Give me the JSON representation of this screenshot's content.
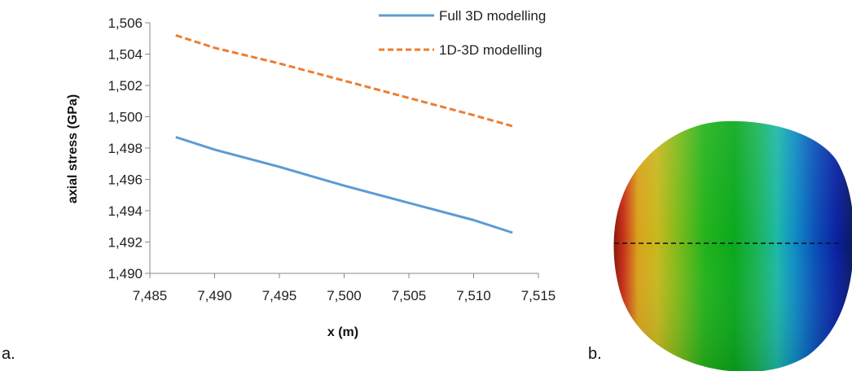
{
  "chart_data": {
    "type": "line",
    "xlabel": "x (m)",
    "ylabel": "axial stress (GPa)",
    "xlim": [
      7.485,
      7.515
    ],
    "ylim": [
      1.49,
      1.506
    ],
    "x_ticks": [
      "7,485",
      "7,490",
      "7,495",
      "7,500",
      "7,505",
      "7,510",
      "7,515"
    ],
    "y_ticks": [
      "1,490",
      "1,492",
      "1,494",
      "1,496",
      "1,498",
      "1,500",
      "1,502",
      "1,504",
      "1,506"
    ],
    "legend_position": "top-right",
    "grid": false,
    "series": [
      {
        "name": "Full 3D modelling",
        "color": "#5b9bd5",
        "style": "solid",
        "x": [
          7.487,
          7.49,
          7.495,
          7.5,
          7.505,
          7.51,
          7.513
        ],
        "y": [
          1.4987,
          1.4979,
          1.4968,
          1.4956,
          1.4945,
          1.4934,
          1.4926
        ]
      },
      {
        "name": "1D-3D modelling",
        "color": "#ed7d31",
        "style": "dashed",
        "x": [
          7.487,
          7.49,
          7.495,
          7.5,
          7.505,
          7.51,
          7.513
        ],
        "y": [
          1.5052,
          1.5044,
          1.5034,
          1.5023,
          1.5012,
          1.5001,
          1.4994
        ]
      }
    ]
  },
  "panels": {
    "a_label": "a.",
    "b_label": "b."
  }
}
